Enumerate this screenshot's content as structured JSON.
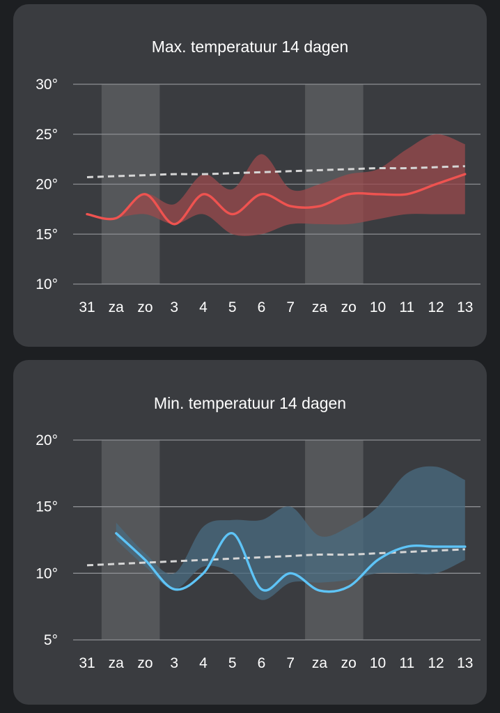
{
  "charts": {
    "max": {
      "title": "Max. temperatuur 14 dagen",
      "colors": {
        "line": "#ef5350",
        "band": "#9b4a4c",
        "trend": "#d6d6d6",
        "weekend": "#55575a",
        "grid": "#8d8f93"
      }
    },
    "min": {
      "title": "Min. temperatuur 14 dagen",
      "colors": {
        "line": "#5ec4f7",
        "band": "#4a6b80",
        "trend": "#d6d6d6",
        "weekend": "#55575a",
        "grid": "#8d8f93"
      }
    }
  },
  "chart_data": [
    {
      "type": "line",
      "title": "Max. temperatuur 14 dagen",
      "categories": [
        "31",
        "za",
        "zo",
        "3",
        "4",
        "5",
        "6",
        "7",
        "za",
        "zo",
        "10",
        "11",
        "12",
        "13"
      ],
      "weekend_categories": [
        [
          "za",
          "zo"
        ],
        [
          "za",
          "zo"
        ]
      ],
      "ylim": [
        10,
        30
      ],
      "yticks": [
        10,
        15,
        20,
        25,
        30
      ],
      "ytick_suffix": "°",
      "grid": true,
      "series": [
        {
          "role": "expected",
          "values": [
            17,
            16.6,
            19,
            16,
            19,
            17,
            19,
            17.8,
            17.8,
            19,
            19,
            19,
            20,
            21
          ]
        },
        {
          "role": "range_low",
          "values": [
            null,
            16.6,
            17,
            16,
            17,
            15,
            15,
            16,
            16,
            16,
            16.5,
            17,
            17,
            17
          ]
        },
        {
          "role": "range_high",
          "values": [
            null,
            16.6,
            19,
            18,
            21,
            19.5,
            23,
            19.5,
            20,
            21,
            21.5,
            23.5,
            25,
            24
          ]
        },
        {
          "role": "trend",
          "values": [
            20.7,
            20.8,
            20.9,
            21,
            21,
            21.1,
            21.2,
            21.3,
            21.4,
            21.5,
            21.6,
            21.6,
            21.7,
            21.8
          ]
        }
      ]
    },
    {
      "type": "line",
      "title": "Min. temperatuur 14 dagen",
      "categories": [
        "31",
        "za",
        "zo",
        "3",
        "4",
        "5",
        "6",
        "7",
        "za",
        "zo",
        "10",
        "11",
        "12",
        "13"
      ],
      "weekend_categories": [
        [
          "za",
          "zo"
        ],
        [
          "za",
          "zo"
        ]
      ],
      "ylim": [
        5,
        20
      ],
      "yticks": [
        5,
        10,
        15,
        20
      ],
      "ytick_suffix": "°",
      "grid": true,
      "series": [
        {
          "role": "expected",
          "values": [
            null,
            13,
            11,
            8.8,
            10,
            13,
            8.8,
            10,
            8.7,
            9,
            11,
            12,
            12,
            12
          ]
        },
        {
          "role": "range_low",
          "values": [
            null,
            12.5,
            10.5,
            8.8,
            10.5,
            10,
            8,
            9.3,
            9.3,
            9.5,
            10,
            10,
            10,
            11
          ]
        },
        {
          "role": "range_high",
          "values": [
            null,
            13.8,
            11.5,
            10,
            13.5,
            14,
            14,
            15,
            12.8,
            13.5,
            15,
            17.5,
            18,
            17
          ]
        },
        {
          "role": "trend",
          "values": [
            10.6,
            10.7,
            10.8,
            10.9,
            11,
            11.1,
            11.2,
            11.3,
            11.4,
            11.4,
            11.5,
            11.6,
            11.7,
            11.8
          ]
        }
      ]
    }
  ]
}
